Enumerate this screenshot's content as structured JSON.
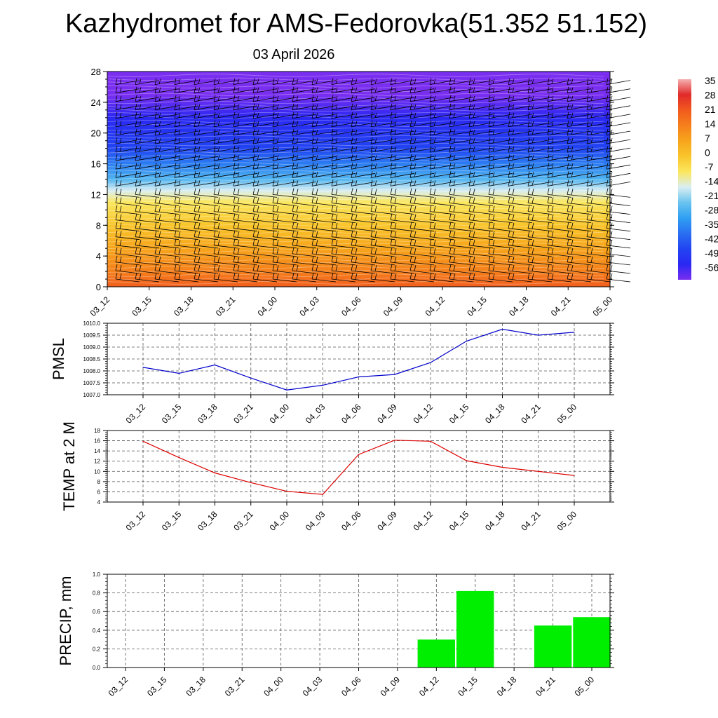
{
  "title": "Kazhydromet for AMS-Fedorovka(51.352 51.152)",
  "subtitle": "03 April 2026",
  "x_ticks": [
    "03_12",
    "03_15",
    "03_18",
    "03_21",
    "04_00",
    "04_03",
    "04_06",
    "04_09",
    "04_12",
    "04_15",
    "04_18",
    "04_21",
    "05_00"
  ],
  "colors": {
    "pmsl_line": "#0000cc",
    "temp_line": "#dd0000",
    "precip_bar": "#00ee00",
    "grid": "#555555"
  },
  "chart_data": [
    {
      "type": "heatmap",
      "name": "upper-air-temperature",
      "ylim": [
        0,
        28
      ],
      "y_ticks": [
        "0",
        "4",
        "8",
        "12",
        "16",
        "20",
        "24",
        "28"
      ],
      "colorbar": {
        "labels": [
          "35",
          "28",
          "21",
          "14",
          "7",
          "0",
          "-7",
          "-14",
          "-21",
          "-28",
          "-35",
          "-42",
          "-49",
          "-56"
        ],
        "colors": [
          "#f6b0b0",
          "#e02a2a",
          "#f25a1e",
          "#f5801c",
          "#f7a51c",
          "#f9c52c",
          "#fbe75e",
          "#d9eef2",
          "#69c3ef",
          "#2f9ff2",
          "#2a6ff2",
          "#2244f2",
          "#2a28f2",
          "#7a2ef0"
        ]
      },
      "band_value_stops": [
        {
          "level": 0,
          "value": 20
        },
        {
          "level": 2,
          "value": 14
        },
        {
          "level": 5,
          "value": 7
        },
        {
          "level": 8,
          "value": 0
        },
        {
          "level": 11,
          "value": -7
        },
        {
          "level": 12.5,
          "value": -14
        },
        {
          "level": 14,
          "value": -24
        },
        {
          "level": 16,
          "value": -33
        },
        {
          "level": 18,
          "value": -42
        },
        {
          "level": 22,
          "value": -49
        },
        {
          "level": 25,
          "value": -56
        },
        {
          "level": 28,
          "value": -60
        }
      ]
    },
    {
      "type": "line",
      "name": "pmsl",
      "ylabel": "PMSL",
      "ylim": [
        1007.0,
        1010.0
      ],
      "y_ticks": [
        "1007.0",
        "1007.5",
        "1008.0",
        "1008.5",
        "1009.0",
        "1009.5",
        "1010.0"
      ],
      "values": [
        1008.15,
        1007.9,
        1008.25,
        1007.7,
        1007.2,
        1007.4,
        1007.75,
        1007.85,
        1008.35,
        1009.25,
        1009.75,
        1009.5,
        1009.62
      ]
    },
    {
      "type": "line",
      "name": "temp-2m",
      "ylabel": "TEMP at 2 M",
      "ylim": [
        4,
        18
      ],
      "y_ticks": [
        "4",
        "6",
        "8",
        "10",
        "12",
        "14",
        "16",
        "18"
      ],
      "values": [
        15.9,
        12.7,
        9.7,
        7.8,
        6.1,
        5.5,
        13.3,
        16.1,
        15.9,
        12.1,
        10.8,
        10.0,
        9.2
      ]
    },
    {
      "type": "bar",
      "name": "precip",
      "ylabel": "PRECIP, mm",
      "ylim": [
        0,
        1.0
      ],
      "y_ticks": [
        "0.0",
        "0.2",
        "0.4",
        "0.6",
        "0.8",
        "1.0"
      ],
      "values": [
        0,
        0,
        0,
        0,
        0,
        0,
        0,
        0,
        0.3,
        0.82,
        0,
        0.45,
        0.54
      ]
    }
  ]
}
